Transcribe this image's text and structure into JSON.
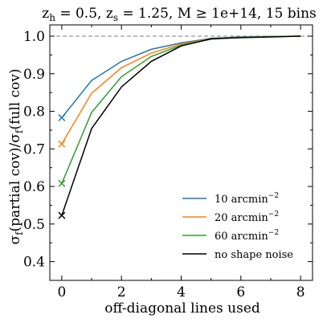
{
  "chart_data": {
    "type": "line",
    "title": "z_h = 0.5, z_s = 1.25, M ≥ 1e+14, 15 bins",
    "title_parts": {
      "zh_main": "z",
      "zh_sub": "h",
      "zh_val": " = 0.5, ",
      "zs_main": "z",
      "zs_sub": "s",
      "zs_val": " = 1.25, ",
      "rest": "M ≥ 1e+14, 15 bins"
    },
    "xlabel": "off-diagonal lines used",
    "ylabel": "σ_f(partial cov) / σ_f(full cov)",
    "ylabel_parts": {
      "s1": "σ",
      "sub1": "f",
      "mid": "(partial cov)/",
      "s2": "σ",
      "sub2": "f",
      "end": "(full cov)"
    },
    "xlim": [
      -0.4,
      8.4
    ],
    "ylim": [
      0.35,
      1.03
    ],
    "xticks": [
      "0",
      "2",
      "4",
      "6",
      "8"
    ],
    "xtick_values": [
      0,
      2,
      4,
      6,
      8
    ],
    "yticks": [
      "0.4",
      "0.5",
      "0.6",
      "0.7",
      "0.8",
      "0.9",
      "1.0"
    ],
    "ytick_values": [
      0.4,
      0.5,
      0.6,
      0.7,
      0.8,
      0.9,
      1.0
    ],
    "reference_line": {
      "y": 1.0,
      "style": "dashed",
      "color": "#7f7f7f"
    },
    "x": [
      0,
      1,
      2,
      3,
      4,
      5,
      6,
      7,
      8
    ],
    "series": [
      {
        "name": "10 arcmin",
        "sup": "−2",
        "color": "#1f77b4",
        "values": [
          0.783,
          0.882,
          0.933,
          0.965,
          0.982,
          0.994,
          0.998,
          0.999,
          1.0
        ]
      },
      {
        "name": "20 arcmin",
        "sup": "−2",
        "color": "#ff7f0e",
        "values": [
          0.713,
          0.848,
          0.916,
          0.955,
          0.979,
          0.993,
          0.997,
          0.999,
          1.0
        ]
      },
      {
        "name": "60 arcmin",
        "sup": "−2",
        "color": "#2ca02c",
        "values": [
          0.608,
          0.797,
          0.892,
          0.946,
          0.976,
          0.992,
          0.997,
          0.999,
          1.0
        ]
      },
      {
        "name": "no shape noise",
        "sup": "",
        "color": "#000000",
        "values": [
          0.523,
          0.754,
          0.865,
          0.933,
          0.974,
          0.993,
          0.996,
          0.998,
          1.0
        ]
      }
    ],
    "marker_at_x0": "x",
    "legend_position": "lower-right",
    "grid": false
  }
}
